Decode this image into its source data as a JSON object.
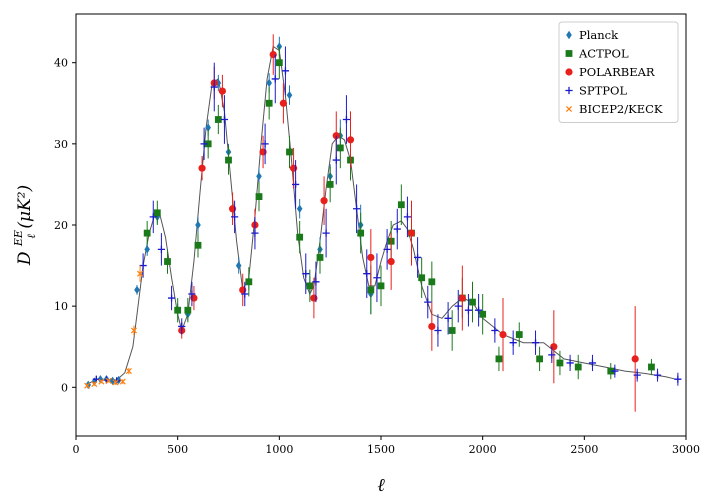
{
  "chart_data": {
    "type": "scatter",
    "title": "",
    "xlabel": "ℓ",
    "ylabel_main": "D",
    "ylabel_sub": "ℓ",
    "ylabel_sup": "EE",
    "ylabel_units": "(μK²)",
    "xlim": [
      0,
      3000
    ],
    "ylim": [
      -6,
      46
    ],
    "xticks": [
      0,
      500,
      1000,
      1500,
      2000,
      2500,
      3000
    ],
    "yticks": [
      0,
      10,
      20,
      30,
      40
    ],
    "grid": false,
    "legend_position": "top-right",
    "model_curve": {
      "color": "#555555",
      "x": [
        50,
        100,
        150,
        200,
        240,
        280,
        300,
        330,
        360,
        390,
        410,
        440,
        470,
        500,
        520,
        550,
        580,
        610,
        640,
        670,
        700,
        730,
        760,
        790,
        820,
        850,
        880,
        910,
        940,
        970,
        1000,
        1030,
        1060,
        1090,
        1120,
        1150,
        1170,
        1200,
        1230,
        1260,
        1290,
        1320,
        1350,
        1380,
        1410,
        1440,
        1470,
        1500,
        1530,
        1560,
        1600,
        1630,
        1660,
        1700,
        1750,
        1800,
        1850,
        1900,
        1950,
        2000,
        2100,
        2200,
        2300,
        2400,
        2500,
        2600,
        2700,
        2800,
        2900,
        2950
      ],
      "y": [
        0.3,
        1.0,
        1.0,
        0.9,
        1.8,
        5.0,
        9.0,
        15.0,
        19.0,
        21.5,
        21.5,
        18.5,
        13.5,
        9.0,
        7.0,
        9.0,
        15.5,
        24.0,
        32.0,
        37.5,
        38.0,
        34.0,
        26.0,
        18.0,
        12.0,
        13.5,
        21.0,
        30.0,
        38.0,
        42.0,
        41.5,
        36.0,
        28.0,
        19.0,
        13.5,
        11.5,
        12.5,
        18.0,
        24.5,
        30.0,
        31.0,
        30.5,
        28.0,
        22.0,
        16.0,
        12.5,
        12.5,
        15.5,
        18.0,
        20.0,
        20.5,
        19.5,
        17.0,
        12.5,
        9.0,
        8.5,
        10.0,
        11.0,
        10.5,
        8.5,
        6.5,
        5.5,
        5.5,
        3.5,
        3.0,
        2.5,
        2.0,
        1.7,
        1.3,
        1.0
      ]
    },
    "series": [
      {
        "name": "Planck",
        "color": "#1f77b4",
        "marker": "diamond",
        "points": [
          {
            "x": 60,
            "y": 0.3,
            "err": 0.3
          },
          {
            "x": 90,
            "y": 0.7,
            "err": 0.3
          },
          {
            "x": 120,
            "y": 1.0,
            "err": 0.3
          },
          {
            "x": 150,
            "y": 1.0,
            "err": 0.3
          },
          {
            "x": 180,
            "y": 0.8,
            "err": 0.3
          },
          {
            "x": 210,
            "y": 0.9,
            "err": 0.3
          },
          {
            "x": 300,
            "y": 12.0,
            "err": 0.6
          },
          {
            "x": 350,
            "y": 17.0,
            "err": 0.8
          },
          {
            "x": 400,
            "y": 21.0,
            "err": 0.8
          },
          {
            "x": 450,
            "y": 15.5,
            "err": 0.8
          },
          {
            "x": 500,
            "y": 9.5,
            "err": 0.8
          },
          {
            "x": 550,
            "y": 9.0,
            "err": 0.8
          },
          {
            "x": 600,
            "y": 20.0,
            "err": 1.0
          },
          {
            "x": 650,
            "y": 32.0,
            "err": 1.0
          },
          {
            "x": 700,
            "y": 37.5,
            "err": 1.0
          },
          {
            "x": 750,
            "y": 29.0,
            "err": 1.0
          },
          {
            "x": 800,
            "y": 15.0,
            "err": 1.0
          },
          {
            "x": 850,
            "y": 13.0,
            "err": 1.0
          },
          {
            "x": 900,
            "y": 26.0,
            "err": 1.0
          },
          {
            "x": 950,
            "y": 37.5,
            "err": 1.2
          },
          {
            "x": 1000,
            "y": 42.0,
            "err": 1.2
          },
          {
            "x": 1050,
            "y": 36.0,
            "err": 1.2
          },
          {
            "x": 1100,
            "y": 22.0,
            "err": 1.2
          },
          {
            "x": 1150,
            "y": 12.5,
            "err": 1.2
          },
          {
            "x": 1200,
            "y": 17.0,
            "err": 1.5
          },
          {
            "x": 1250,
            "y": 26.0,
            "err": 1.5
          },
          {
            "x": 1300,
            "y": 31.0,
            "err": 2.0
          },
          {
            "x": 1350,
            "y": 28.0,
            "err": 2.0
          },
          {
            "x": 1400,
            "y": 20.0,
            "err": 2.5
          },
          {
            "x": 1450,
            "y": 11.5,
            "err": 2.5
          }
        ]
      },
      {
        "name": "ACTPOL",
        "color": "#1a7a1a",
        "marker": "square",
        "points": [
          {
            "x": 350,
            "y": 19.0,
            "err": 1.5
          },
          {
            "x": 400,
            "y": 21.5,
            "err": 1.5
          },
          {
            "x": 450,
            "y": 15.5,
            "err": 1.5
          },
          {
            "x": 500,
            "y": 9.5,
            "err": 1.5
          },
          {
            "x": 550,
            "y": 9.5,
            "err": 1.5
          },
          {
            "x": 600,
            "y": 17.5,
            "err": 1.5
          },
          {
            "x": 650,
            "y": 30.0,
            "err": 1.8
          },
          {
            "x": 700,
            "y": 33.0,
            "err": 1.8
          },
          {
            "x": 750,
            "y": 28.0,
            "err": 1.8
          },
          {
            "x": 850,
            "y": 13.0,
            "err": 1.8
          },
          {
            "x": 900,
            "y": 23.5,
            "err": 1.8
          },
          {
            "x": 950,
            "y": 35.0,
            "err": 2.0
          },
          {
            "x": 1000,
            "y": 40.0,
            "err": 2.0
          },
          {
            "x": 1050,
            "y": 29.0,
            "err": 2.0
          },
          {
            "x": 1100,
            "y": 18.5,
            "err": 2.0
          },
          {
            "x": 1150,
            "y": 12.5,
            "err": 2.0
          },
          {
            "x": 1200,
            "y": 16.0,
            "err": 2.0
          },
          {
            "x": 1250,
            "y": 25.0,
            "err": 2.2
          },
          {
            "x": 1300,
            "y": 29.5,
            "err": 2.5
          },
          {
            "x": 1350,
            "y": 28.0,
            "err": 2.5
          },
          {
            "x": 1400,
            "y": 19.0,
            "err": 2.5
          },
          {
            "x": 1450,
            "y": 12.0,
            "err": 3.0
          },
          {
            "x": 1500,
            "y": 12.5,
            "err": 2.5
          },
          {
            "x": 1550,
            "y": 18.0,
            "err": 2.5
          },
          {
            "x": 1600,
            "y": 22.5,
            "err": 2.5
          },
          {
            "x": 1650,
            "y": 19.0,
            "err": 2.5
          },
          {
            "x": 1700,
            "y": 13.5,
            "err": 2.5
          },
          {
            "x": 1750,
            "y": 13.0,
            "err": 2.5
          },
          {
            "x": 1850,
            "y": 7.0,
            "err": 2.5
          },
          {
            "x": 1900,
            "y": 11.0,
            "err": 2.5
          },
          {
            "x": 1950,
            "y": 10.5,
            "err": 2.5
          },
          {
            "x": 2000,
            "y": 9.0,
            "err": 2.5
          },
          {
            "x": 2080,
            "y": 3.5,
            "err": 1.5
          },
          {
            "x": 2180,
            "y": 6.5,
            "err": 1.5
          },
          {
            "x": 2280,
            "y": 3.5,
            "err": 1.5
          },
          {
            "x": 2380,
            "y": 3.0,
            "err": 1.5
          },
          {
            "x": 2470,
            "y": 2.5,
            "err": 1.5
          },
          {
            "x": 2630,
            "y": 2.0,
            "err": 1.0
          },
          {
            "x": 2830,
            "y": 2.5,
            "err": 1.0
          }
        ]
      },
      {
        "name": "POLARBEAR",
        "color": "#e8201c",
        "marker": "circle",
        "points": [
          {
            "x": 520,
            "y": 7.0,
            "err": 1.0
          },
          {
            "x": 580,
            "y": 11.0,
            "err": 1.5
          },
          {
            "x": 620,
            "y": 27.0,
            "err": 1.5
          },
          {
            "x": 680,
            "y": 37.5,
            "err": 2.0
          },
          {
            "x": 720,
            "y": 36.5,
            "err": 2.0
          },
          {
            "x": 770,
            "y": 22.0,
            "err": 2.0
          },
          {
            "x": 820,
            "y": 12.0,
            "err": 2.0
          },
          {
            "x": 880,
            "y": 20.0,
            "err": 2.0
          },
          {
            "x": 920,
            "y": 29.0,
            "err": 2.0
          },
          {
            "x": 970,
            "y": 41.0,
            "err": 2.5
          },
          {
            "x": 1020,
            "y": 35.0,
            "err": 2.5
          },
          {
            "x": 1070,
            "y": 27.0,
            "err": 2.5
          },
          {
            "x": 1170,
            "y": 11.0,
            "err": 2.5
          },
          {
            "x": 1220,
            "y": 23.0,
            "err": 3.0
          },
          {
            "x": 1280,
            "y": 31.0,
            "err": 3.0
          },
          {
            "x": 1350,
            "y": 30.5,
            "err": 3.5
          },
          {
            "x": 1450,
            "y": 16.0,
            "err": 3.5
          },
          {
            "x": 1550,
            "y": 15.5,
            "err": 3.5
          },
          {
            "x": 1650,
            "y": 19.0,
            "err": 4.0
          },
          {
            "x": 1750,
            "y": 7.5,
            "err": 3.0
          },
          {
            "x": 1900,
            "y": 11.0,
            "err": 4.0
          },
          {
            "x": 2100,
            "y": 6.5,
            "err": 4.5
          },
          {
            "x": 2350,
            "y": 5.0,
            "err": 4.5
          },
          {
            "x": 2750,
            "y": 3.5,
            "err": 6.5
          }
        ]
      },
      {
        "name": "SPTPOL",
        "color": "#1a1acc",
        "marker": "plus",
        "points": [
          {
            "x": 100,
            "y": 1.0,
            "err": 0.3
          },
          {
            "x": 150,
            "y": 0.9,
            "err": 0.3
          },
          {
            "x": 200,
            "y": 0.8,
            "err": 0.3
          },
          {
            "x": 330,
            "y": 15.0,
            "err": 1.5
          },
          {
            "x": 380,
            "y": 21.0,
            "err": 2.0
          },
          {
            "x": 420,
            "y": 17.0,
            "err": 2.0
          },
          {
            "x": 470,
            "y": 11.0,
            "err": 1.5
          },
          {
            "x": 520,
            "y": 7.5,
            "err": 1.0
          },
          {
            "x": 570,
            "y": 11.5,
            "err": 1.5
          },
          {
            "x": 630,
            "y": 30.0,
            "err": 2.0
          },
          {
            "x": 680,
            "y": 37.0,
            "err": 3.0
          },
          {
            "x": 730,
            "y": 33.0,
            "err": 3.0
          },
          {
            "x": 780,
            "y": 21.0,
            "err": 2.0
          },
          {
            "x": 830,
            "y": 11.5,
            "err": 1.5
          },
          {
            "x": 880,
            "y": 19.0,
            "err": 2.0
          },
          {
            "x": 930,
            "y": 30.0,
            "err": 2.5
          },
          {
            "x": 980,
            "y": 38.0,
            "err": 3.0
          },
          {
            "x": 1030,
            "y": 39.0,
            "err": 3.0
          },
          {
            "x": 1080,
            "y": 25.0,
            "err": 3.0
          },
          {
            "x": 1130,
            "y": 14.0,
            "err": 2.5
          },
          {
            "x": 1180,
            "y": 13.0,
            "err": 2.5
          },
          {
            "x": 1230,
            "y": 19.0,
            "err": 3.0
          },
          {
            "x": 1280,
            "y": 28.0,
            "err": 3.0
          },
          {
            "x": 1330,
            "y": 33.0,
            "err": 3.0
          },
          {
            "x": 1380,
            "y": 22.0,
            "err": 3.0
          },
          {
            "x": 1430,
            "y": 14.0,
            "err": 3.0
          },
          {
            "x": 1480,
            "y": 13.5,
            "err": 3.0
          },
          {
            "x": 1530,
            "y": 17.0,
            "err": 2.5
          },
          {
            "x": 1580,
            "y": 19.5,
            "err": 2.5
          },
          {
            "x": 1630,
            "y": 21.0,
            "err": 2.5
          },
          {
            "x": 1680,
            "y": 16.0,
            "err": 2.5
          },
          {
            "x": 1730,
            "y": 10.5,
            "err": 2.0
          },
          {
            "x": 1780,
            "y": 7.0,
            "err": 2.0
          },
          {
            "x": 1830,
            "y": 8.5,
            "err": 2.0
          },
          {
            "x": 1880,
            "y": 10.0,
            "err": 2.0
          },
          {
            "x": 1930,
            "y": 9.5,
            "err": 2.0
          },
          {
            "x": 1980,
            "y": 9.5,
            "err": 2.0
          },
          {
            "x": 2060,
            "y": 7.0,
            "err": 1.5
          },
          {
            "x": 2150,
            "y": 5.5,
            "err": 1.5
          },
          {
            "x": 2260,
            "y": 5.5,
            "err": 1.5
          },
          {
            "x": 2340,
            "y": 4.0,
            "err": 1.0
          },
          {
            "x": 2430,
            "y": 3.0,
            "err": 1.0
          },
          {
            "x": 2540,
            "y": 3.0,
            "err": 1.0
          },
          {
            "x": 2650,
            "y": 2.0,
            "err": 0.8
          },
          {
            "x": 2760,
            "y": 1.5,
            "err": 0.8
          },
          {
            "x": 2860,
            "y": 1.5,
            "err": 0.8
          },
          {
            "x": 2960,
            "y": 1.0,
            "err": 0.8
          }
        ]
      },
      {
        "name": "BICEP2/KECK",
        "color": "#ff7f0e",
        "marker": "x",
        "points": [
          {
            "x": 55,
            "y": 0.2,
            "err": 0.2
          },
          {
            "x": 90,
            "y": 0.4,
            "err": 0.2
          },
          {
            "x": 125,
            "y": 0.7,
            "err": 0.2
          },
          {
            "x": 160,
            "y": 0.8,
            "err": 0.2
          },
          {
            "x": 195,
            "y": 0.6,
            "err": 0.3
          },
          {
            "x": 230,
            "y": 0.7,
            "err": 0.3
          },
          {
            "x": 260,
            "y": 2.0,
            "err": 0.4
          },
          {
            "x": 285,
            "y": 7.0,
            "err": 0.6
          },
          {
            "x": 315,
            "y": 14.0,
            "err": 1.0
          }
        ]
      }
    ]
  }
}
